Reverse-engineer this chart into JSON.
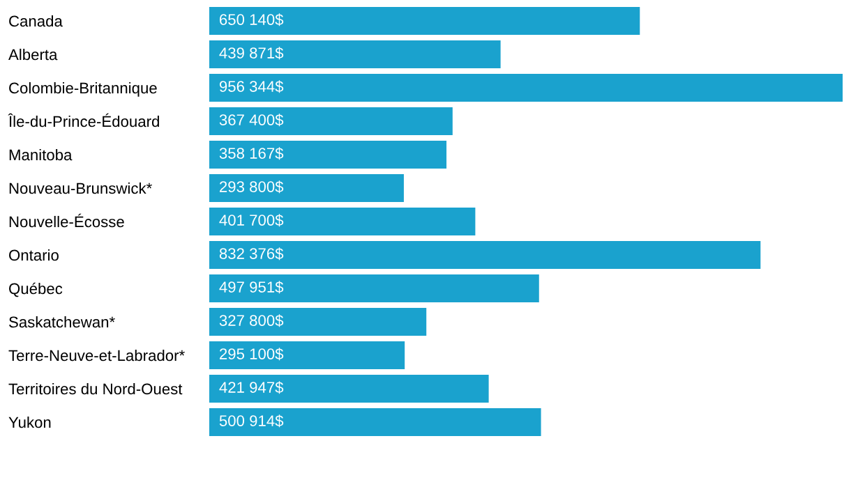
{
  "chart_data": {
    "type": "bar",
    "orientation": "horizontal",
    "color": "#1aa2ce",
    "categories": [
      "Canada",
      "Alberta",
      "Colombie-Britannique",
      "Île-du-Prince-Édouard",
      "Manitoba",
      "Nouveau-Brunswick*",
      "Nouvelle-Écosse",
      "Ontario",
      "Québec",
      "Saskatchewan*",
      "Terre-Neuve-et-Labrador*",
      "Territoires du Nord-Ouest",
      "Yukon"
    ],
    "values": [
      650140,
      439871,
      956344,
      367400,
      358167,
      293800,
      401700,
      832376,
      497951,
      327800,
      295100,
      421947,
      500914
    ],
    "value_labels": [
      "650 140$",
      "439 871$",
      "956 344$",
      "367 400$",
      "358 167$",
      "293 800$",
      "401 700$",
      "832 376$",
      "497 951$",
      "327 800$",
      "295 100$",
      "421 947$",
      "500 914$"
    ],
    "grid": false
  }
}
